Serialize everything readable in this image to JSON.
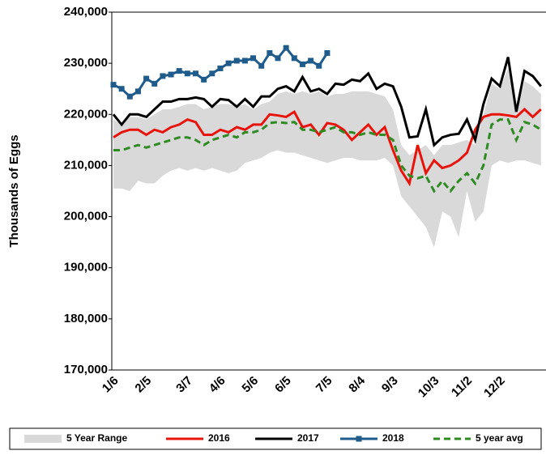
{
  "chart_data": {
    "type": "line",
    "y_label": "Thousands of Eggs",
    "categories": [
      "1/6",
      null,
      null,
      null,
      "2/5",
      null,
      null,
      null,
      null,
      "3/7",
      null,
      null,
      null,
      "4/6",
      null,
      null,
      null,
      "5/6",
      null,
      null,
      null,
      "6/5",
      null,
      null,
      null,
      null,
      "7/5",
      null,
      null,
      null,
      "8/4",
      null,
      null,
      null,
      "9/3",
      null,
      null,
      null,
      null,
      "10/3",
      null,
      null,
      null,
      "11/2",
      null,
      null,
      null,
      "12/2",
      null,
      null,
      null,
      null,
      null
    ],
    "ylim": [
      170000,
      240000
    ],
    "yticks": [
      {
        "value": 170000,
        "label": "170,000"
      },
      {
        "value": 180000,
        "label": "180,000"
      },
      {
        "value": 190000,
        "label": "190,000"
      },
      {
        "value": 200000,
        "label": "200,000"
      },
      {
        "value": 210000,
        "label": "210,000"
      },
      {
        "value": 220000,
        "label": "220,000"
      },
      {
        "value": 230000,
        "label": "230,000"
      },
      {
        "value": 240000,
        "label": "240,000"
      }
    ],
    "grid": false,
    "series": [
      {
        "name": "5 Year Range",
        "color": "#d9d9d9",
        "high": [
          219000,
          218000,
          219500,
          219500,
          219000,
          220000,
          221000,
          221000,
          221500,
          222000,
          222000,
          221000,
          221500,
          222000,
          222000,
          221500,
          222000,
          221000,
          222000,
          222500,
          224000,
          224500,
          224000,
          224500,
          224000,
          224500,
          223500,
          224000,
          224000,
          224500,
          224500,
          224500,
          224000,
          223500,
          221000,
          214000,
          212000,
          213000,
          214000,
          212000,
          214000,
          214000,
          214500,
          215000,
          214000,
          220000,
          226000,
          225000,
          229000,
          220000,
          226500,
          225500,
          224000
        ],
        "low": [
          205500,
          205500,
          205000,
          207000,
          206500,
          206500,
          208000,
          209000,
          209500,
          209000,
          209500,
          209000,
          209500,
          209000,
          208500,
          209000,
          210500,
          211000,
          211500,
          212500,
          213000,
          212500,
          212500,
          212000,
          211500,
          211000,
          210500,
          211000,
          211500,
          211500,
          211000,
          211000,
          211000,
          211500,
          210000,
          204000,
          202000,
          200000,
          198000,
          194000,
          201000,
          200000,
          196000,
          205000,
          199000,
          201000,
          210000,
          211000,
          210500,
          211000,
          211000,
          210500,
          210000
        ]
      },
      {
        "name": "2016",
        "color": "#e8140c",
        "values": [
          215500,
          216500,
          217000,
          217000,
          216000,
          217000,
          216500,
          217500,
          218000,
          219000,
          218500,
          216000,
          216000,
          217000,
          216500,
          217500,
          217000,
          218000,
          218000,
          220000,
          219800,
          219500,
          220500,
          217500,
          218000,
          216000,
          218300,
          218000,
          217000,
          215000,
          216500,
          218000,
          216000,
          217500,
          213000,
          209000,
          206500,
          214000,
          208500,
          211000,
          209500,
          210000,
          211000,
          212500,
          217000,
          219500,
          220000,
          220000,
          219800,
          219500,
          221000,
          219500,
          221000
        ]
      },
      {
        "name": "2017",
        "color": "#000000",
        "values": [
          220000,
          218000,
          220000,
          220000,
          219500,
          221000,
          222500,
          222500,
          223000,
          223000,
          223300,
          223000,
          221500,
          223000,
          222800,
          221500,
          223000,
          221500,
          223500,
          223500,
          225000,
          225500,
          224500,
          227300,
          224500,
          225000,
          224000,
          226000,
          225800,
          226800,
          226500,
          228000,
          225000,
          226000,
          225500,
          221500,
          215500,
          215700,
          221000,
          214000,
          215500,
          216000,
          216200,
          219000,
          215000,
          222000,
          227000,
          225500,
          231200,
          220500,
          228500,
          227500,
          225500
        ]
      },
      {
        "name": "2018",
        "color": "#1f5c8b",
        "marker": "square",
        "values": [
          225800,
          225000,
          223500,
          224500,
          227000,
          226000,
          227500,
          227800,
          228500,
          228000,
          228000,
          226800,
          228000,
          229000,
          230000,
          230500,
          230500,
          231000,
          229500,
          232000,
          231000,
          233000,
          231000,
          229800,
          230500,
          229500,
          232000,
          null,
          null,
          null,
          null,
          null,
          null,
          null,
          null,
          null,
          null,
          null,
          null,
          null,
          null,
          null,
          null,
          null,
          null,
          null,
          null,
          null,
          null,
          null,
          null,
          null,
          null
        ]
      },
      {
        "name": "5 year avg",
        "color": "#2e8b22",
        "dash": true,
        "values": [
          213000,
          213000,
          213500,
          214000,
          213500,
          214000,
          214500,
          215000,
          215500,
          215500,
          215000,
          214000,
          215000,
          215500,
          216000,
          215500,
          216500,
          216500,
          217000,
          218300,
          218500,
          218300,
          218500,
          217000,
          217000,
          216500,
          217000,
          217500,
          216500,
          216500,
          216000,
          216500,
          216000,
          216000,
          215000,
          210000,
          208000,
          207500,
          208000,
          205000,
          207000,
          205000,
          207000,
          208500,
          206500,
          210000,
          218000,
          219000,
          219000,
          215000,
          218500,
          218000,
          217000
        ]
      }
    ]
  }
}
